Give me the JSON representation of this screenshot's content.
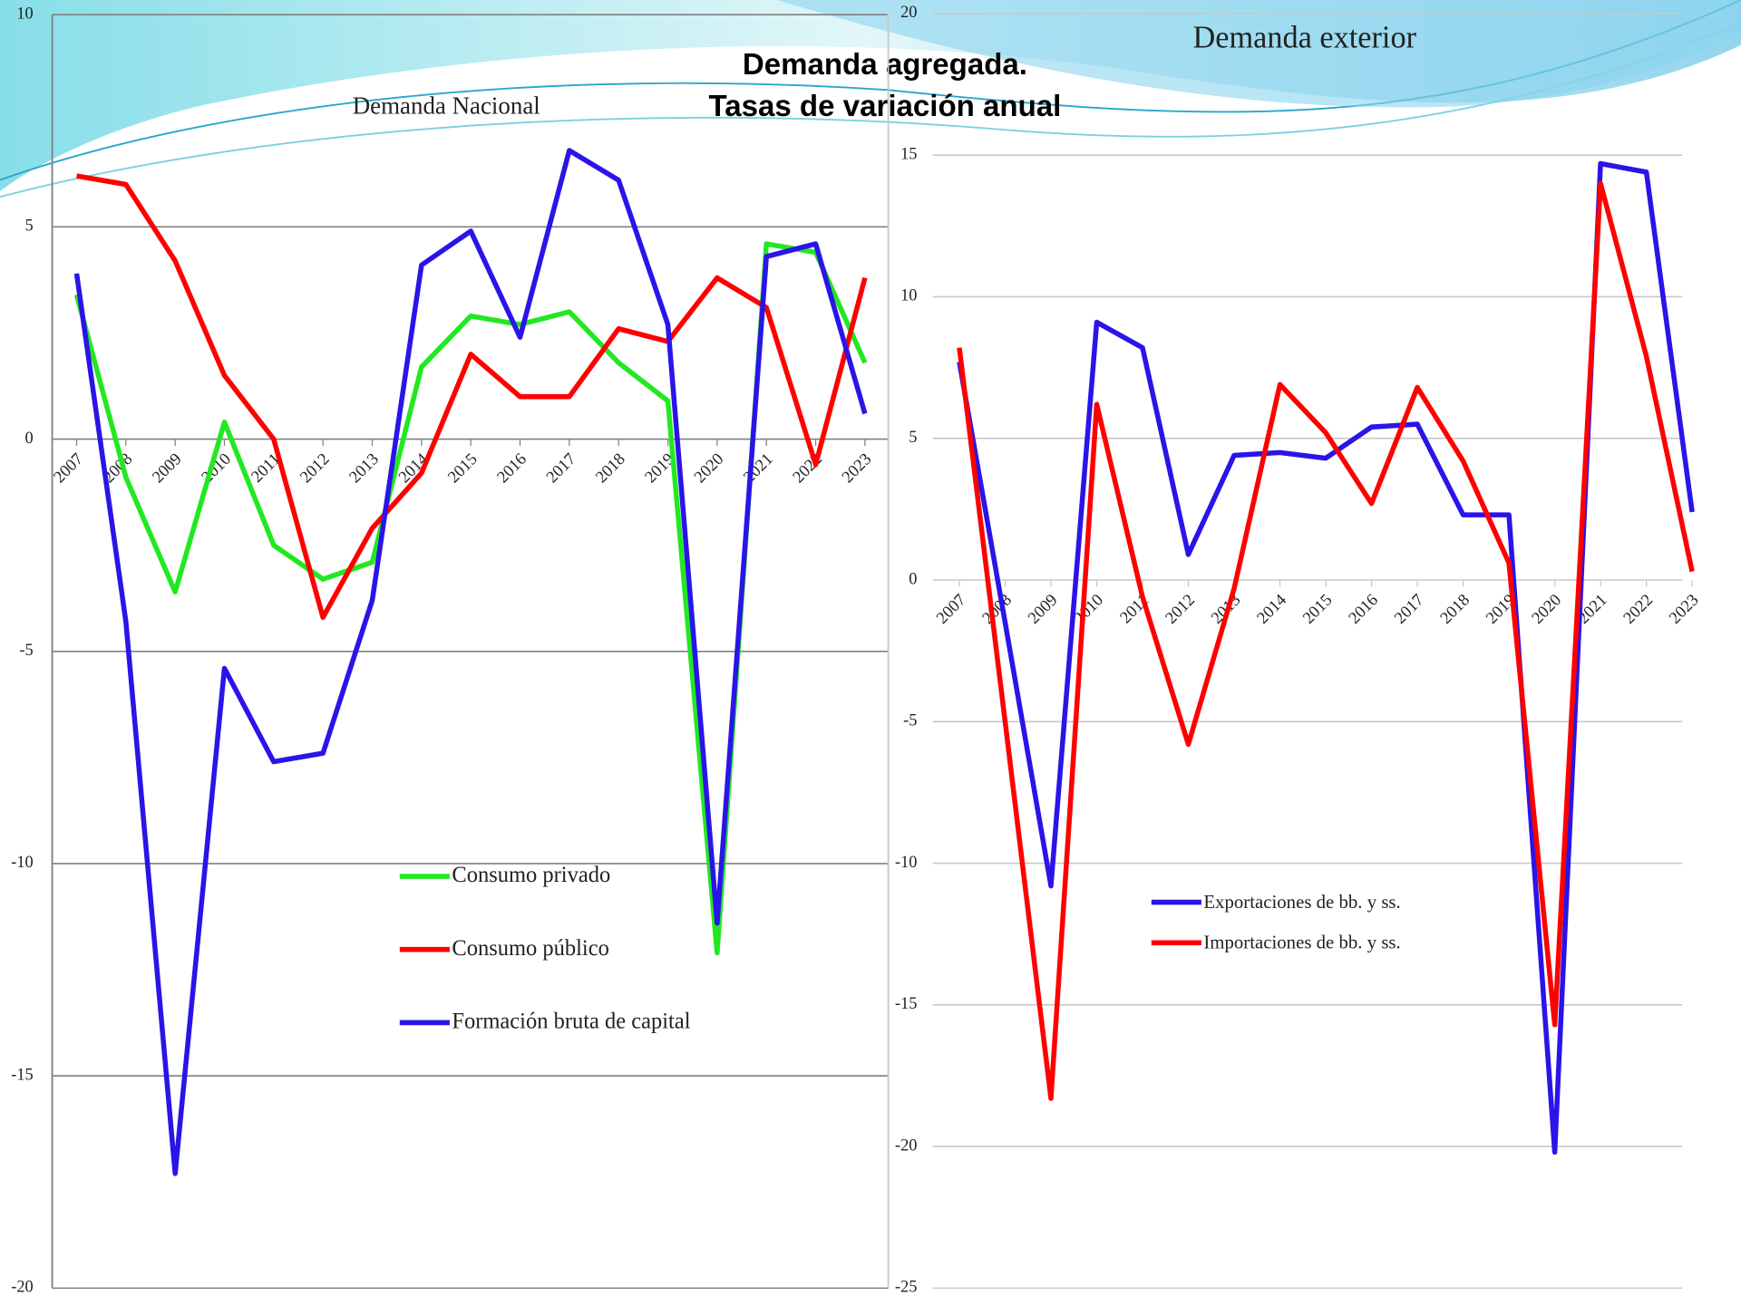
{
  "title": [
    "Demanda agregada.",
    "Tasas de variación anual"
  ],
  "chart_data": [
    {
      "type": "line",
      "title": "Demanda Nacional",
      "categories": [
        "2007",
        "2008",
        "2009",
        "2010",
        "2011",
        "2012",
        "2013",
        "2014",
        "2015",
        "2016",
        "2017",
        "2018",
        "2019",
        "2020",
        "2021",
        "2022",
        "2023"
      ],
      "series": [
        {
          "name": "Consumo privado",
          "color": "#22e822",
          "values": [
            3.4,
            -0.9,
            -3.6,
            0.4,
            -2.5,
            -3.3,
            -2.9,
            1.7,
            2.9,
            2.7,
            3.0,
            1.8,
            0.9,
            -12.1,
            4.6,
            4.4,
            1.8
          ]
        },
        {
          "name": "Consumo público",
          "color": "#ff0000",
          "values": [
            6.2,
            6.0,
            4.2,
            1.5,
            0.0,
            -4.2,
            -2.1,
            -0.8,
            2.0,
            1.0,
            1.0,
            2.6,
            2.3,
            3.8,
            3.1,
            -0.6,
            3.8
          ]
        },
        {
          "name": "Formación bruta de capital",
          "color": "#2a14e8",
          "values": [
            3.9,
            -4.3,
            -17.3,
            -5.4,
            -7.6,
            -7.4,
            -3.8,
            4.1,
            4.9,
            2.4,
            6.8,
            6.1,
            2.7,
            -11.4,
            4.3,
            4.6,
            0.6
          ]
        }
      ],
      "ylim": [
        -20,
        10
      ],
      "yticks": [
        -20,
        -15,
        -10,
        -5,
        0,
        5,
        10
      ],
      "grid": true
    },
    {
      "type": "line",
      "title": "Demanda exterior",
      "categories": [
        "2007",
        "2008",
        "2009",
        "2010",
        "2011",
        "2012",
        "2013",
        "2014",
        "2015",
        "2016",
        "2017",
        "2018",
        "2019",
        "2020",
        "2021",
        "2022",
        "2023"
      ],
      "series": [
        {
          "name": "Exportaciones de bb. y ss.",
          "color": "#2a14e8",
          "values": [
            7.7,
            -1.5,
            -10.8,
            9.1,
            8.2,
            0.9,
            4.4,
            4.5,
            4.3,
            5.4,
            5.5,
            2.3,
            2.3,
            -20.2,
            14.7,
            14.4,
            2.4
          ]
        },
        {
          "name": "Importaciones de bb. y ss.",
          "color": "#ff0000",
          "values": [
            8.2,
            -5.0,
            -18.3,
            6.2,
            -0.6,
            -5.8,
            -0.3,
            6.9,
            5.2,
            2.7,
            6.8,
            4.2,
            0.6,
            -15.7,
            14.0,
            7.9,
            0.3
          ]
        }
      ],
      "ylim": [
        -25,
        20
      ],
      "yticks": [
        -25,
        -20,
        -15,
        -10,
        -5,
        0,
        5,
        10,
        15,
        20
      ],
      "grid": true
    }
  ]
}
